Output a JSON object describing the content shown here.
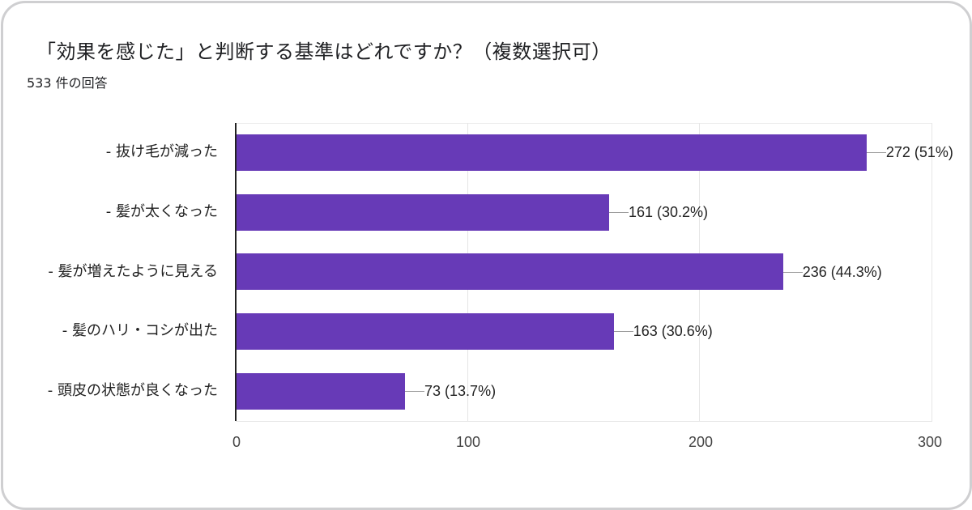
{
  "header": {
    "title": "「効果を感じた」と判断する基準はどれですか？（複数選択可）",
    "response_count": "533 件の回答"
  },
  "colors": {
    "bar": "#673ab7",
    "border": "#cfcfd1",
    "gridline": "#e6e6e6",
    "text": "#202124"
  },
  "chart_data": {
    "type": "bar",
    "orientation": "horizontal",
    "title": "「効果を感じた」と判断する基準はどれですか？（複数選択可）",
    "subtitle": "533 件の回答",
    "categories": [
      "- 抜け毛が減った",
      "- 髪が太くなった",
      "- 髪が増えたように見える",
      "- 髪のハリ・コシが出た",
      "- 頭皮の状態が良くなった"
    ],
    "values": [
      272,
      161,
      236,
      163,
      73
    ],
    "percentages": [
      "51%",
      "30.2%",
      "44.3%",
      "30.6%",
      "13.7%"
    ],
    "value_labels": [
      "272 (51%)",
      "161 (30.2%)",
      "236 (44.3%)",
      "163 (30.6%)",
      "73 (13.7%)"
    ],
    "xlabel": "",
    "ylabel": "",
    "xlim": [
      0,
      300
    ],
    "x_ticks": [
      0,
      100,
      200,
      300
    ],
    "x_tick_labels": [
      "0",
      "100",
      "200",
      "300"
    ],
    "grid": true,
    "legend": "none"
  }
}
